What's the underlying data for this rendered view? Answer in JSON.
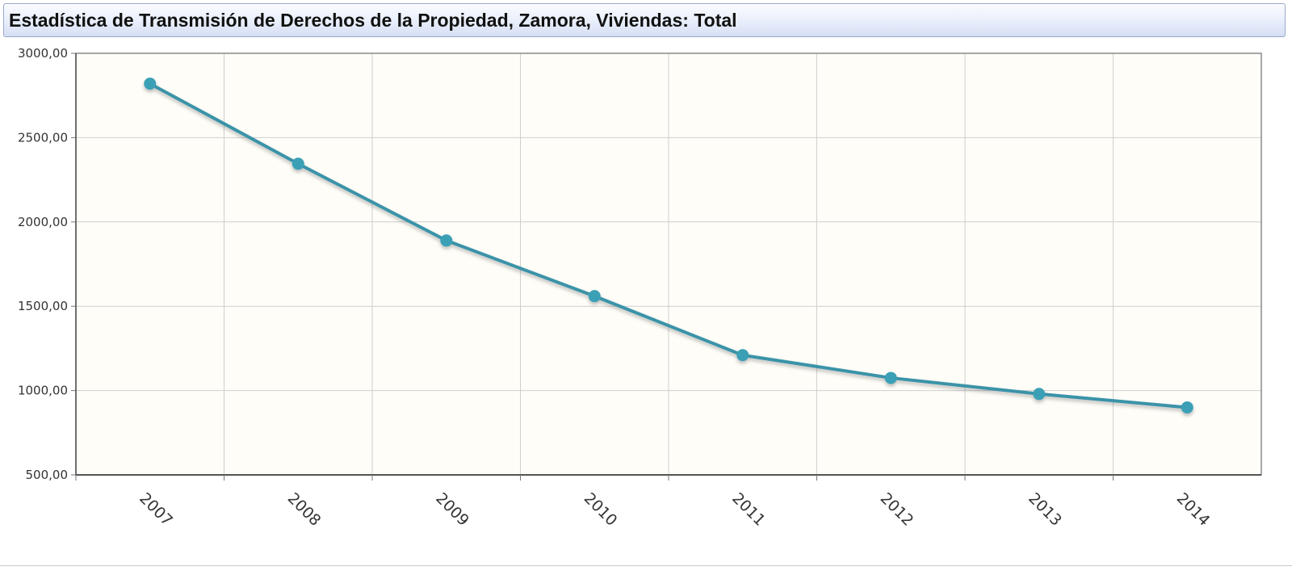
{
  "header": {
    "title": "Estadística de Transmisión de Derechos de la Propiedad, Zamora, Viviendas: Total"
  },
  "chart_data": {
    "type": "line",
    "title": "Estadística de Transmisión de Derechos de la Propiedad, Zamora, Viviendas: Total",
    "xlabel": "",
    "ylabel": "",
    "categories": [
      "2007",
      "2008",
      "2009",
      "2010",
      "2011",
      "2012",
      "2013",
      "2014"
    ],
    "series": [
      {
        "values": [
          2820,
          2345,
          1890,
          1560,
          1210,
          1075,
          980,
          900
        ]
      }
    ],
    "ylim": [
      500,
      3000
    ],
    "yticks": [
      "500,00",
      "1000,00",
      "1500,00",
      "2000,00",
      "2500,00",
      "3000,00"
    ],
    "grid": true,
    "legend": "none",
    "colors": {
      "line": "#3a93a8",
      "marker": "#3aa0b6",
      "plot_background": "#fefdf8",
      "grid": "#cfcfcf"
    }
  }
}
